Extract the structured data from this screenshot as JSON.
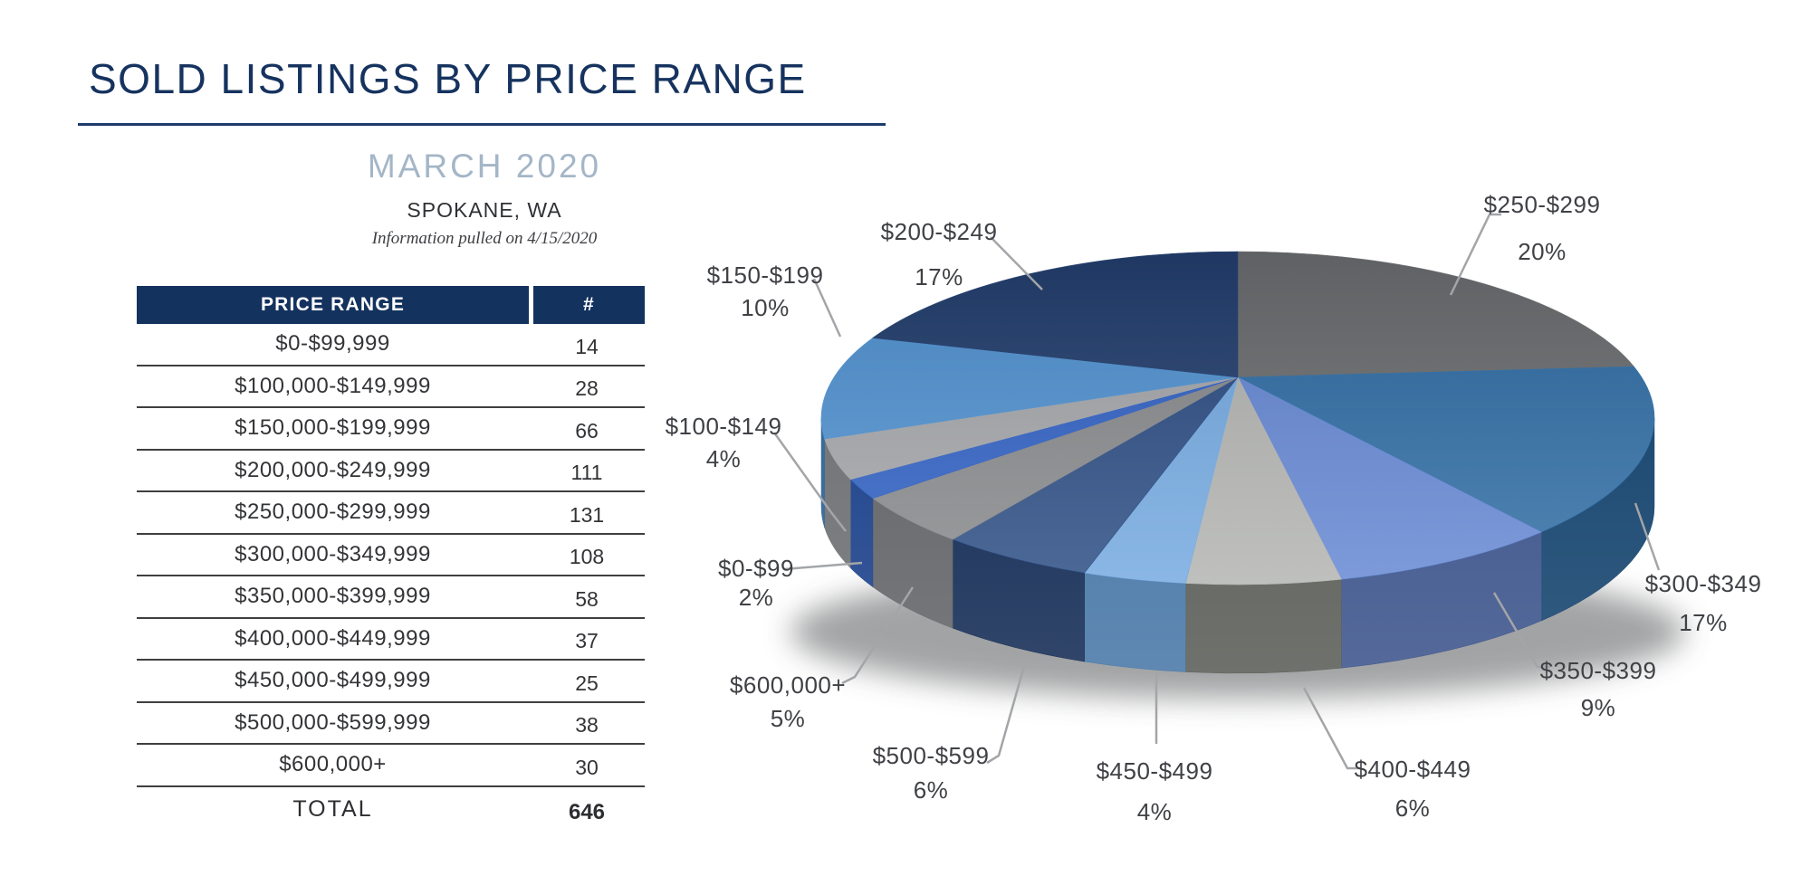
{
  "header": {
    "title": "SOLD LISTINGS BY PRICE RANGE",
    "subtitle": "MARCH 2020",
    "location": "SPOKANE, WA",
    "note": "Information pulled on 4/15/2020",
    "title_color": "#16335f",
    "subtitle_color": "#a4b6c7"
  },
  "table": {
    "columns": [
      "PRICE RANGE",
      "#"
    ],
    "header_bg": "#14325e",
    "header_text_color": "#ffffff",
    "rows": [
      {
        "range": "$0-$99,999",
        "count": "14"
      },
      {
        "range": "$100,000-$149,999",
        "count": "28"
      },
      {
        "range": "$150,000-$199,999",
        "count": "66"
      },
      {
        "range": "$200,000-$249,999",
        "count": "111"
      },
      {
        "range": "$250,000-$299,999",
        "count": "131"
      },
      {
        "range": "$300,000-$349,999",
        "count": "108"
      },
      {
        "range": "$350,000-$399,999",
        "count": "58"
      },
      {
        "range": "$400,000-$449,999",
        "count": "37"
      },
      {
        "range": "$450,000-$499,999",
        "count": "25"
      },
      {
        "range": "$500,000-$599,999",
        "count": "38"
      },
      {
        "range": "$600,000+",
        "count": "30"
      }
    ],
    "total_label": "TOTAL",
    "total_value": "646"
  },
  "chart_data": {
    "type": "pie",
    "style": "3d",
    "title": "SOLD LISTINGS BY PRICE RANGE",
    "period": "MARCH 2020",
    "location": "SPOKANE, WA",
    "unit": "percent of sold listings",
    "start_angle_deg": 0,
    "direction": "clockwise",
    "slices": [
      {
        "label": "$250-$299",
        "pct": 20,
        "pct_label": "20%",
        "color": "#6a6c6f",
        "side_color": "#46484b"
      },
      {
        "label": "$300-$349",
        "pct": 17,
        "pct_label": "17%",
        "color": "#2f6da4",
        "side_color": "#1d4a73"
      },
      {
        "label": "$350-$399",
        "pct": 9,
        "pct_label": "9%",
        "color": "#6487d3",
        "side_color": "#42598f"
      },
      {
        "label": "$400-$449",
        "pct": 6,
        "pct_label": "6%",
        "color": "#b3b4b2",
        "side_color": "#5f615c"
      },
      {
        "label": "$450-$499",
        "pct": 4,
        "pct_label": "4%",
        "color": "#74a9e0",
        "side_color": "#4d7ba9"
      },
      {
        "label": "$500-$599",
        "pct": 6,
        "pct_label": "6%",
        "color": "#2b4c83",
        "side_color": "#1a3159"
      },
      {
        "label": "$600,000+",
        "pct": 5,
        "pct_label": "5%",
        "color": "#87898c",
        "side_color": "#67696c"
      },
      {
        "label": "$0-$99",
        "pct": 2,
        "pct_label": "2%",
        "color": "#3061c3",
        "side_color": "#24488f"
      },
      {
        "label": "$100-$149",
        "pct": 4,
        "pct_label": "4%",
        "color": "#a4a6a9",
        "side_color": "#737578"
      },
      {
        "label": "$150-$199",
        "pct": 10,
        "pct_label": "10%",
        "color": "#5092d1",
        "side_color": "#376a9a"
      },
      {
        "label": "$200-$249",
        "pct": 17,
        "pct_label": "17%",
        "color": "#223e6e",
        "side_color": "#16294a"
      }
    ]
  }
}
